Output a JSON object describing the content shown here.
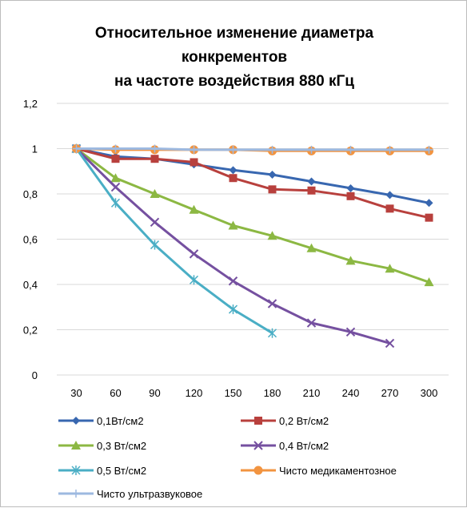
{
  "chart_data": {
    "type": "line",
    "title_lines": [
      "Относительное изменение диаметра",
      "конкрементов",
      "на частоте воздействия  880 кГц"
    ],
    "categories": [
      30,
      60,
      90,
      120,
      150,
      180,
      210,
      240,
      270,
      300
    ],
    "ylim": [
      0,
      1.2
    ],
    "yticks": [
      "0",
      "0,2",
      "0,4",
      "0,6",
      "0,8",
      "1",
      "1,2"
    ],
    "ytick_values": [
      0,
      0.2,
      0.4,
      0.6,
      0.8,
      1.0,
      1.2
    ],
    "grid": true,
    "legend_position": "bottom",
    "series": [
      {
        "name": "0,1Вт/см2",
        "color": "#3867b0",
        "marker": "diamond",
        "values": [
          1.0,
          0.965,
          0.955,
          0.93,
          0.905,
          0.885,
          0.855,
          0.825,
          0.795,
          0.76
        ]
      },
      {
        "name": "0,2 Вт/см2",
        "color": "#b8403d",
        "marker": "square",
        "values": [
          1.0,
          0.955,
          0.955,
          0.94,
          0.87,
          0.82,
          0.815,
          0.79,
          0.735,
          0.695
        ]
      },
      {
        "name": "0,3 Вт/см2",
        "color": "#8cb843",
        "marker": "triangle",
        "values": [
          1.0,
          0.87,
          0.8,
          0.73,
          0.66,
          0.615,
          0.56,
          0.505,
          0.47,
          0.41
        ]
      },
      {
        "name": "0,4 Вт/см2",
        "color": "#7550a0",
        "marker": "x",
        "values": [
          1.0,
          0.83,
          0.675,
          0.535,
          0.415,
          0.315,
          0.23,
          0.19,
          0.14,
          null
        ]
      },
      {
        "name": "0,5 Вт/см2",
        "color": "#4aaec5",
        "marker": "star",
        "values": [
          1.0,
          0.76,
          0.575,
          0.42,
          0.29,
          0.185,
          null,
          null,
          null,
          null
        ]
      },
      {
        "name": "Чисто медикаментозное",
        "color": "#f29440",
        "marker": "circle",
        "values": [
          1.0,
          0.995,
          0.995,
          0.995,
          0.995,
          0.99,
          0.99,
          0.99,
          0.99,
          0.99
        ]
      },
      {
        "name": "Чисто ультразвуковое",
        "color": "#9db9e0",
        "marker": "plus",
        "values": [
          1.0,
          1.0,
          1.0,
          0.995,
          0.995,
          0.995,
          0.995,
          0.995,
          0.995,
          0.995
        ]
      }
    ]
  }
}
